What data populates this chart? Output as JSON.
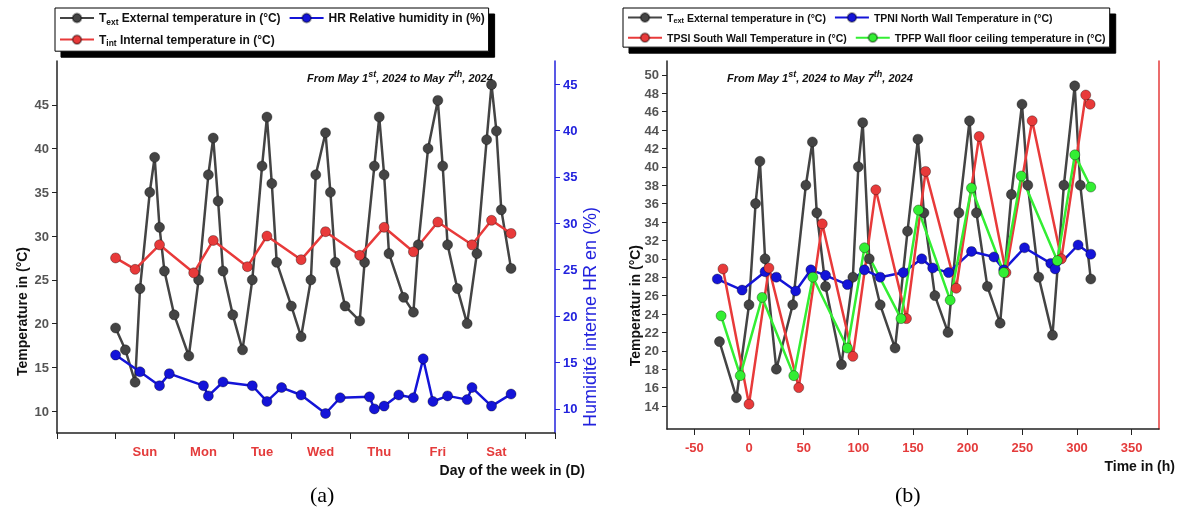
{
  "chart_data": [
    {
      "type": "line",
      "xlabel": "Day of the week in (D)",
      "ylabel": "Temperature in (°C)",
      "y2label": "Humidité interne HR en (%)",
      "annotations": [
        "From May 1$^{st}$, 2024 to May 7$^{th}$, 2024",
        "(a)"
      ],
      "categories": [
        null,
        null,
        null,
        null,
        null,
        null,
        null,
        null,
        null,
        null,
        null,
        null,
        null,
        null,
        null,
        null,
        null,
        null,
        "Sun",
        null,
        null,
        null,
        null,
        null,
        null,
        null,
        null,
        null,
        null,
        null,
        "Mon",
        null,
        null,
        null,
        null,
        null,
        null,
        null,
        null,
        null,
        null,
        null,
        "Tue",
        null,
        null,
        null,
        null,
        null,
        null,
        null,
        null,
        null,
        null,
        null,
        "Wed",
        null,
        null,
        null,
        null,
        null,
        null,
        null,
        null,
        null,
        null,
        null,
        "Thu",
        null,
        null,
        null,
        null,
        null,
        null,
        null,
        null,
        null,
        null,
        null,
        "Fri",
        null,
        null,
        null,
        null,
        null,
        null,
        null,
        null,
        null,
        null,
        null,
        "Sat",
        null,
        null,
        null,
        null,
        null,
        null,
        null,
        null,
        null,
        null,
        null,
        null
      ],
      "ylim": [
        7.5,
        50
      ],
      "yticks": [
        10,
        15,
        20,
        25,
        30,
        35,
        40,
        45
      ],
      "y2lim": [
        7.4,
        47.5
      ],
      "y2ticks": [
        10,
        15,
        20,
        25,
        30,
        35,
        40,
        45
      ],
      "legend": "top",
      "marker": "circle",
      "series": [
        {
          "name": "T$_{ext}$ External temperature in (°C)",
          "color": "#444444",
          "values": [
            null,
            null,
            null,
            null,
            null,
            null,
            null,
            null,
            null,
            null,
            null,
            null,
            19.5,
            null,
            17,
            null,
            13.3,
            24,
            null,
            35,
            39,
            31,
            26,
            null,
            21,
            null,
            null,
            16.3,
            null,
            25,
            null,
            37,
            41.2,
            34,
            26,
            null,
            21,
            null,
            17,
            null,
            25,
            null,
            38,
            43.6,
            36,
            27,
            null,
            null,
            22,
            null,
            18.5,
            null,
            25,
            37,
            null,
            41.8,
            35,
            27,
            null,
            22,
            null,
            null,
            20.3,
            27,
            null,
            38,
            43.6,
            37,
            28,
            null,
            null,
            23,
            null,
            21.3,
            29,
            null,
            40,
            null,
            45.5,
            38,
            29,
            null,
            24,
            null,
            20,
            null,
            28,
            null,
            41,
            47.3,
            42,
            33,
            null,
            26.3,
            null,
            null,
            null,
            null,
            null,
            null,
            null,
            null,
            null
          ]
        },
        {
          "name": "HR Relative humidity in (%)",
          "color": "#1414d8",
          "axis": "y2",
          "values": [
            null,
            null,
            null,
            null,
            null,
            null,
            null,
            null,
            null,
            null,
            null,
            null,
            15.8,
            null,
            null,
            null,
            null,
            14,
            null,
            null,
            null,
            12.5,
            null,
            13.8,
            null,
            null,
            null,
            null,
            null,
            null,
            12.5,
            11.4,
            null,
            null,
            12.9,
            null,
            null,
            null,
            null,
            null,
            12.5,
            null,
            null,
            10.8,
            null,
            null,
            12.3,
            null,
            null,
            null,
            11.5,
            null,
            null,
            null,
            null,
            9.5,
            null,
            null,
            11.2,
            null,
            null,
            null,
            null,
            null,
            11.3,
            10,
            null,
            10.3,
            null,
            null,
            11.5,
            null,
            null,
            11.2,
            null,
            15.4,
            null,
            10.8,
            null,
            null,
            11.4,
            null,
            null,
            null,
            11,
            12.3,
            null,
            null,
            null,
            10.3,
            null,
            null,
            null,
            11.6,
            null,
            null,
            null,
            null,
            null,
            null,
            null,
            null,
            null
          ]
        },
        {
          "name": "T$_{int}$ Internal temperature in (°C)",
          "color": "#e83a3a",
          "values": [
            null,
            null,
            null,
            null,
            null,
            null,
            null,
            null,
            null,
            null,
            null,
            null,
            27.5,
            null,
            null,
            null,
            26.2,
            null,
            null,
            null,
            null,
            29,
            null,
            null,
            null,
            null,
            null,
            null,
            25.8,
            null,
            null,
            null,
            29.5,
            null,
            null,
            null,
            null,
            null,
            null,
            26.5,
            null,
            null,
            null,
            30,
            null,
            null,
            null,
            null,
            null,
            null,
            27.3,
            null,
            null,
            null,
            null,
            30.5,
            null,
            null,
            null,
            null,
            null,
            null,
            27.8,
            null,
            null,
            null,
            null,
            31,
            null,
            null,
            null,
            null,
            null,
            28.2,
            null,
            null,
            null,
            null,
            31.6,
            null,
            null,
            null,
            null,
            null,
            null,
            29,
            null,
            null,
            null,
            31.8,
            null,
            null,
            null,
            30.3,
            null,
            null,
            null,
            null,
            null,
            null,
            null,
            null,
            null
          ]
        }
      ]
    },
    {
      "type": "line",
      "xlabel": "Time in (h)",
      "ylabel": "Temperatur in (°C)",
      "annotations": [
        "From May 1$^{st}$, 2024 to May 7$^{th}$, 2024",
        "(b)"
      ],
      "xlim": [
        -75,
        375
      ],
      "xticks": [
        -50,
        0,
        50,
        100,
        150,
        200,
        250,
        300,
        350
      ],
      "ylim": [
        11.5,
        51.5
      ],
      "yticks": [
        14,
        16,
        18,
        20,
        22,
        24,
        26,
        28,
        30,
        32,
        34,
        36,
        38,
        40,
        42,
        44,
        46,
        48,
        50
      ],
      "legend": "top",
      "marker": "circle",
      "series": [
        {
          "name": "T$_{ext}$ External temperature in (°C)",
          "color": "#444444",
          "x": [
            -27,
            -11.5,
            0,
            6,
            10,
            14.7,
            25,
            40,
            52,
            58,
            62,
            70,
            84.6,
            95,
            100,
            104,
            110,
            120,
            133.6,
            145,
            154.5,
            160,
            170,
            182,
            192,
            201.7,
            208,
            218,
            229.7,
            240,
            249.7,
            255,
            265,
            277.6,
            288,
            297.9,
            303,
            312.6
          ],
          "values": [
            21,
            14.9,
            25,
            36,
            40.6,
            30,
            18,
            25,
            38,
            42.7,
            35,
            27,
            18.5,
            28,
            40,
            44.8,
            30,
            25,
            20.3,
            33,
            43,
            35,
            26,
            22,
            35,
            45,
            35,
            27,
            23,
            37,
            46.8,
            38,
            28,
            21.7,
            38,
            48.8,
            38,
            27.8
          ]
        },
        {
          "name": "TPNI North Wall Temperature in (°C)",
          "color": "#1414d8",
          "x": [
            -29,
            -6.3,
            14.7,
            25,
            42.7,
            56.6,
            70,
            90,
            105.6,
            120,
            141,
            158,
            168,
            182.5,
            203.5,
            224,
            233,
            252,
            276,
            280,
            301,
            312.6
          ],
          "values": [
            27.8,
            26.6,
            28.6,
            28,
            26.5,
            28.8,
            28.2,
            27.2,
            28.8,
            28,
            28.5,
            30,
            29,
            28.5,
            30.8,
            30.2,
            28.8,
            31.2,
            29.5,
            28.9,
            31.5,
            30.5
          ]
        },
        {
          "name": "TPSI South Wall Temperature in (°C)",
          "color": "#e83a3a",
          "x": [
            -23.8,
            0,
            18.2,
            45.5,
            67,
            95,
            116,
            144,
            161.5,
            189.5,
            210.5,
            235,
            259,
            285.7,
            308,
            312
          ],
          "values": [
            28.9,
            14.2,
            29,
            16,
            33.8,
            19.4,
            37.5,
            23.5,
            39.5,
            26.8,
            43.3,
            28.5,
            45,
            30,
            47.8,
            46.8
          ]
        },
        {
          "name": "TPFP Wall floor ceiling temperature in (°C)",
          "color": "#33ee33",
          "x": [
            -25.5,
            -8,
            12,
            41,
            58.4,
            90,
            105.6,
            139,
            155,
            184,
            203.5,
            233,
            249,
            282,
            298,
            312.6
          ],
          "values": [
            23.8,
            17.3,
            25.8,
            17.3,
            28,
            20.3,
            31.2,
            23.5,
            35.3,
            25.5,
            37.7,
            28.5,
            39,
            29.8,
            41.3,
            37.8
          ]
        }
      ]
    }
  ]
}
